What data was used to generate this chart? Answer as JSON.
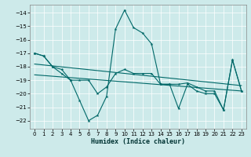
{
  "xlabel": "Humidex (Indice chaleur)",
  "background_color": "#cdeaea",
  "line_color": "#006868",
  "xlim": [
    -0.5,
    23.5
  ],
  "ylim": [
    -22.6,
    -13.4
  ],
  "yticks": [
    -22,
    -21,
    -20,
    -19,
    -18,
    -17,
    -16,
    -15,
    -14
  ],
  "xticks": [
    0,
    1,
    2,
    3,
    4,
    5,
    6,
    7,
    8,
    9,
    10,
    11,
    12,
    13,
    14,
    15,
    16,
    17,
    18,
    19,
    20,
    21,
    22,
    23
  ],
  "line1_x": [
    0,
    1,
    2,
    3,
    4,
    5,
    6,
    7,
    8,
    9,
    10,
    11,
    12,
    13,
    14,
    15,
    16,
    17,
    18,
    19,
    20,
    21,
    22,
    23
  ],
  "line1_y": [
    -17.0,
    -17.2,
    -18.0,
    -18.5,
    -19.0,
    -20.5,
    -22.0,
    -21.6,
    -20.2,
    -15.2,
    -13.8,
    -15.1,
    -15.5,
    -16.3,
    -19.3,
    -19.3,
    -19.3,
    -19.2,
    -19.5,
    -19.8,
    -19.8,
    -21.2,
    -17.5,
    -19.8
  ],
  "line2_x": [
    0,
    1,
    2,
    3,
    4,
    5,
    6,
    7,
    8,
    9,
    10,
    11,
    12,
    13,
    14,
    15,
    16,
    17,
    18,
    19,
    20,
    21,
    22,
    23
  ],
  "line2_y": [
    -17.0,
    -17.2,
    -18.0,
    -18.2,
    -19.0,
    -19.0,
    -19.0,
    -20.0,
    -19.5,
    -18.5,
    -18.2,
    -18.5,
    -18.5,
    -18.5,
    -19.3,
    -19.3,
    -21.1,
    -19.3,
    -19.8,
    -20.0,
    -20.0,
    -21.2,
    -17.5,
    -19.8
  ],
  "trend1_x": [
    0,
    23
  ],
  "trend1_y": [
    -17.8,
    -19.4
  ],
  "trend2_x": [
    0,
    23
  ],
  "trend2_y": [
    -18.6,
    -19.8
  ]
}
